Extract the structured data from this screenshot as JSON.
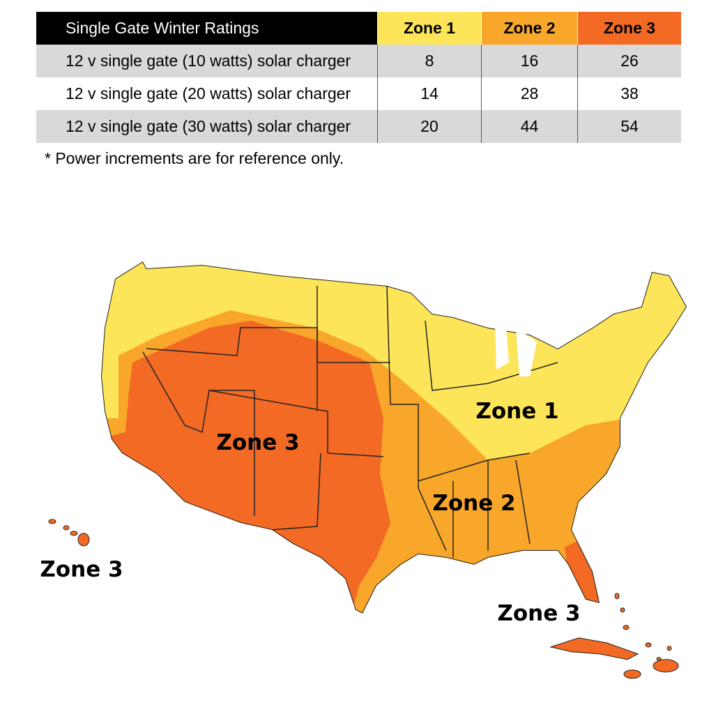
{
  "table": {
    "header": [
      "Single Gate Winter Ratings",
      "Zone 1",
      "Zone 2",
      "Zone 3"
    ],
    "rows": [
      [
        "12 v single gate (10 watts) solar charger",
        8,
        16,
        26
      ],
      [
        "12 v single gate (20 watts) solar charger",
        14,
        28,
        38
      ],
      [
        "12 v single gate (30 watts) solar charger",
        20,
        44,
        54
      ]
    ]
  },
  "footnote": "* Power increments are for reference only.",
  "map": {
    "labels": [
      "Zone 1",
      "Zone 3",
      "Zone 2",
      "Zone 3",
      "Zone 3"
    ]
  }
}
